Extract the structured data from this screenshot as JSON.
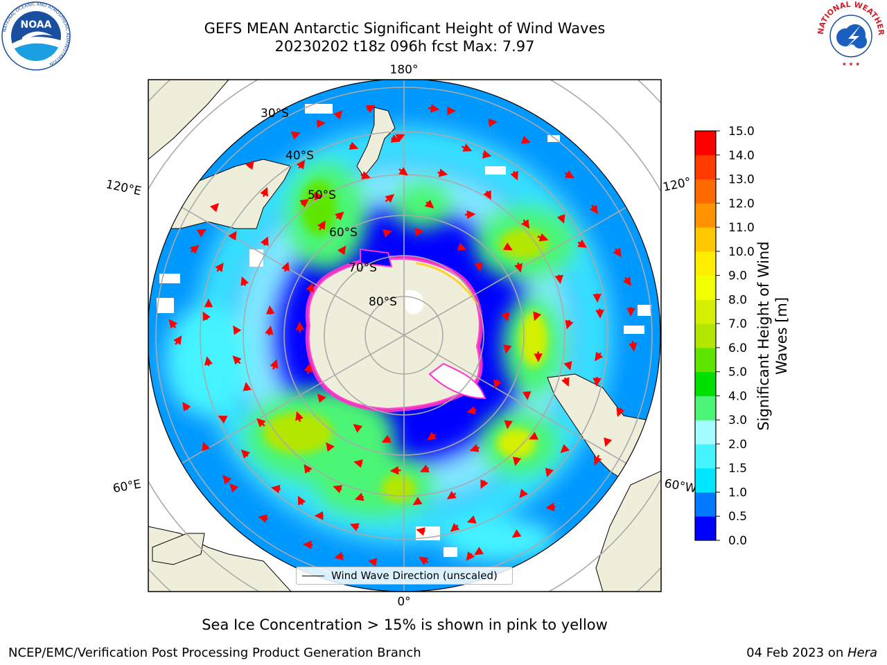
{
  "title": {
    "line1": "GEFS MEAN Antarctic Significant Height of Wind Waves",
    "line2": "20230202 t18z 096h fcst   Max: 7.97"
  },
  "logos": {
    "left": {
      "text": "NOAA",
      "ring_text": "NATIONAL OCEANIC AND ATMOSPHERIC ADMINISTRATION",
      "ring_text_bottom": "U.S. DEPARTMENT OF COMMERCE",
      "color": "#1a4fa0"
    },
    "right": {
      "ring_text": "NATIONAL WEATHER SERVICE",
      "color": "#d0202a"
    }
  },
  "map": {
    "projection": "south-polar-stereographic",
    "longitude_labels": {
      "top": "180°",
      "bottom": "0°",
      "left_upper": "120°E",
      "left_lower": "60°E",
      "right_upper": "120°",
      "right_lower": "60°W"
    },
    "latitude_labels": [
      "30°S",
      "40°S",
      "50°S",
      "60°S",
      "70°S",
      "80°S"
    ],
    "legend": "Wind Wave Direction (unscaled)",
    "colors": {
      "ocean_low": "#0000ff",
      "land": "#efeedb",
      "ice": "#ffffff",
      "ice_edge": "#ff33cc",
      "grid": "#aaaaaa",
      "arrow": "#ff0000"
    }
  },
  "colorbar": {
    "label_line1": "Significant Height of Wind",
    "label_line2": "Waves [m]",
    "ticks": [
      "0.0",
      "0.5",
      "1.0",
      "1.5",
      "2.0",
      "3.0",
      "4.0",
      "5.0",
      "6.0",
      "7.0",
      "8.0",
      "9.0",
      "10.0",
      "11.0",
      "12.0",
      "13.0",
      "14.0",
      "15.0"
    ],
    "colors": [
      "#0000ff",
      "#0078ff",
      "#00e6ff",
      "#45f3ff",
      "#a3fcff",
      "#4cf575",
      "#00e000",
      "#5ee600",
      "#b3e600",
      "#d4f000",
      "#f0ff00",
      "#ffee00",
      "#ffc800",
      "#ff9400",
      "#ff6a00",
      "#ff3b00",
      "#ff0000"
    ]
  },
  "footer": {
    "note": "Sea Ice Concentration > 15% is shown in pink to yellow",
    "left": "NCEP/EMC/Verification Post Processing Product Generation Branch",
    "right_prefix": "04 Feb 2023 on ",
    "right_host": "Hera"
  }
}
